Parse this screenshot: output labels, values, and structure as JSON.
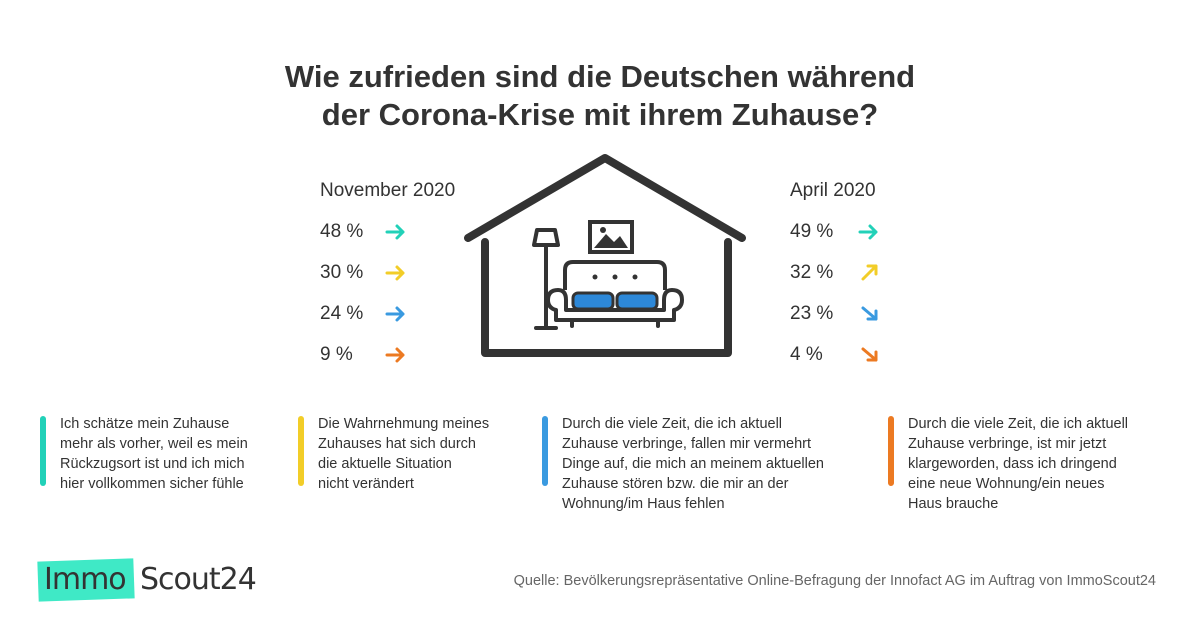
{
  "colors": {
    "teal": "#22d1b8",
    "yellow": "#f2cd28",
    "blue": "#3a9ae0",
    "orange": "#ec7a22",
    "sofa_blue": "#2d88d8",
    "text": "#333333",
    "logo_green": "#3fe9c6"
  },
  "chart_data": {
    "type": "table",
    "title": "Wie zufrieden sind die Deutschen während der Corona-Krise mit ihrem Zuhause?",
    "title_lines": [
      "Wie zufrieden sind die Deutschen während",
      "der Corona-Krise mit ihrem Zuhause?"
    ],
    "columns": [
      "November 2020",
      "April 2020"
    ],
    "unit": "%",
    "series": [
      {
        "name": "November 2020",
        "values": [
          48,
          30,
          24,
          9
        ],
        "labels": [
          "48 %",
          "30 %",
          "24 %",
          "9 %"
        ],
        "arrows": [
          "arrow-right-icon",
          "arrow-right-icon",
          "arrow-right-icon",
          "arrow-right-icon"
        ]
      },
      {
        "name": "April 2020",
        "values": [
          49,
          32,
          23,
          4
        ],
        "labels": [
          "49 %",
          "32 %",
          "23 %",
          "4 %"
        ],
        "arrows": [
          "arrow-right-icon",
          "arrow-up-right-icon",
          "arrow-down-right-icon",
          "arrow-down-right-icon"
        ]
      }
    ],
    "categories": [
      {
        "color": "#22d1b8",
        "lines": [
          "Ich schätze mein Zuhause",
          "mehr als vorher, weil es mein",
          "Rückzugsort ist und ich mich",
          "hier vollkommen sicher fühle"
        ]
      },
      {
        "color": "#f2cd28",
        "lines": [
          "Die Wahrnehmung meines",
          "Zuhauses hat sich durch",
          "die aktuelle Situation",
          "nicht verändert"
        ]
      },
      {
        "color": "#3a9ae0",
        "lines": [
          "Durch die viele Zeit, die ich aktuell",
          "Zuhause verbringe, fallen mir vermehrt",
          "Dinge auf, die mich an meinem aktuellen",
          "Zuhause stören bzw. die mir an der",
          "Wohnung/im Haus fehlen"
        ]
      },
      {
        "color": "#ec7a22",
        "lines": [
          "Durch die viele Zeit, die ich aktuell",
          "Zuhause verbringe, ist mir jetzt",
          "klargeworden, dass ich dringend",
          "eine neue Wohnung/ein neues",
          "Haus brauche"
        ]
      }
    ]
  },
  "logo": {
    "part1": "Immo",
    "part2": "Scout24"
  },
  "source": "Quelle: Bevölkerungsrepräsentative Online-Befragung der Innofact AG im Auftrag von ImmoScout24",
  "illustration": {
    "house": "house-icon",
    "lamp": "floor-lamp-icon",
    "picture": "picture-frame-icon",
    "sofa": "sofa-icon"
  }
}
